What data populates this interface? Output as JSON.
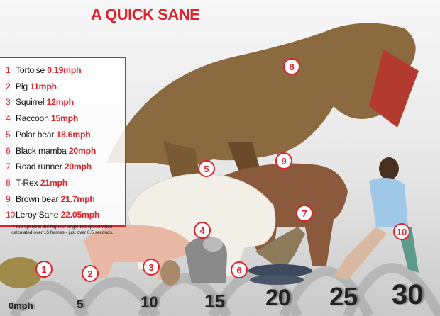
{
  "title": "A QUICK SANE",
  "list": [
    {
      "rank": "1",
      "name": "Tortoise",
      "speed": "0.19mph"
    },
    {
      "rank": "2",
      "name": "Pig",
      "speed": "11mph"
    },
    {
      "rank": "3",
      "name": "Squirrel",
      "speed": "12mph"
    },
    {
      "rank": "4",
      "name": "Raccoon",
      "speed": "15mph"
    },
    {
      "rank": "5",
      "name": "Polar bear",
      "speed": "18.6mph"
    },
    {
      "rank": "6",
      "name": "Black mamba",
      "speed": "20mph"
    },
    {
      "rank": "7",
      "name": "Road runner",
      "speed": "20mph"
    },
    {
      "rank": "8",
      "name": "T-Rex",
      "speed": "21mph"
    },
    {
      "rank": "9",
      "name": "Brown bear",
      "speed": "21.7mph"
    },
    {
      "rank": "10",
      "name": "Leroy Sane",
      "speed": "22.05mph"
    }
  ],
  "footnote": "* Top speed is the highest single top speed value calculated over 15 frames - just over 0.5 seconds.",
  "axis": [
    "0mph",
    "5",
    "10",
    "15",
    "20",
    "25",
    "30"
  ],
  "badges": [
    "1",
    "2",
    "3",
    "4",
    "5",
    "6",
    "7",
    "8",
    "9",
    "10"
  ],
  "colors": {
    "accent": "#e0202a"
  }
}
